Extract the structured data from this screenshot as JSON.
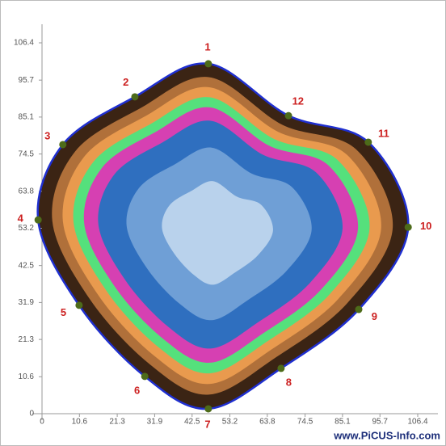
{
  "chart_data": {
    "type": "scatter",
    "x": [
      47.1,
      26.3,
      5.9,
      -1.1,
      10.5,
      29.1,
      47.1,
      67.7,
      89.7,
      103.7,
      92.4,
      69.8
    ],
    "values": [
      100.4,
      90.9,
      77.2,
      55.6,
      31.1,
      10.7,
      1.4,
      13.0,
      29.9,
      53.5,
      77.9,
      85.5
    ],
    "labels": [
      "1",
      "2",
      "3",
      "4",
      "5",
      "6",
      "7",
      "8",
      "9",
      "10",
      "11",
      "12"
    ],
    "xlim": [
      0,
      106.4
    ],
    "ylim": [
      0,
      106.4
    ],
    "xticks": [
      0,
      10.6,
      21.3,
      31.9,
      42.5,
      53.2,
      63.8,
      74.5,
      85.1,
      95.7,
      106.4
    ],
    "yticks": [
      0,
      10.6,
      21.3,
      31.9,
      42.5,
      53.2,
      63.8,
      74.5,
      85.1,
      95.7,
      106.4
    ],
    "outline_color": "#1f2fd0",
    "point_color": "#4d6b1a",
    "label_color": "#cc1f1f",
    "watermark": "www.PiCUS-Info.com"
  }
}
